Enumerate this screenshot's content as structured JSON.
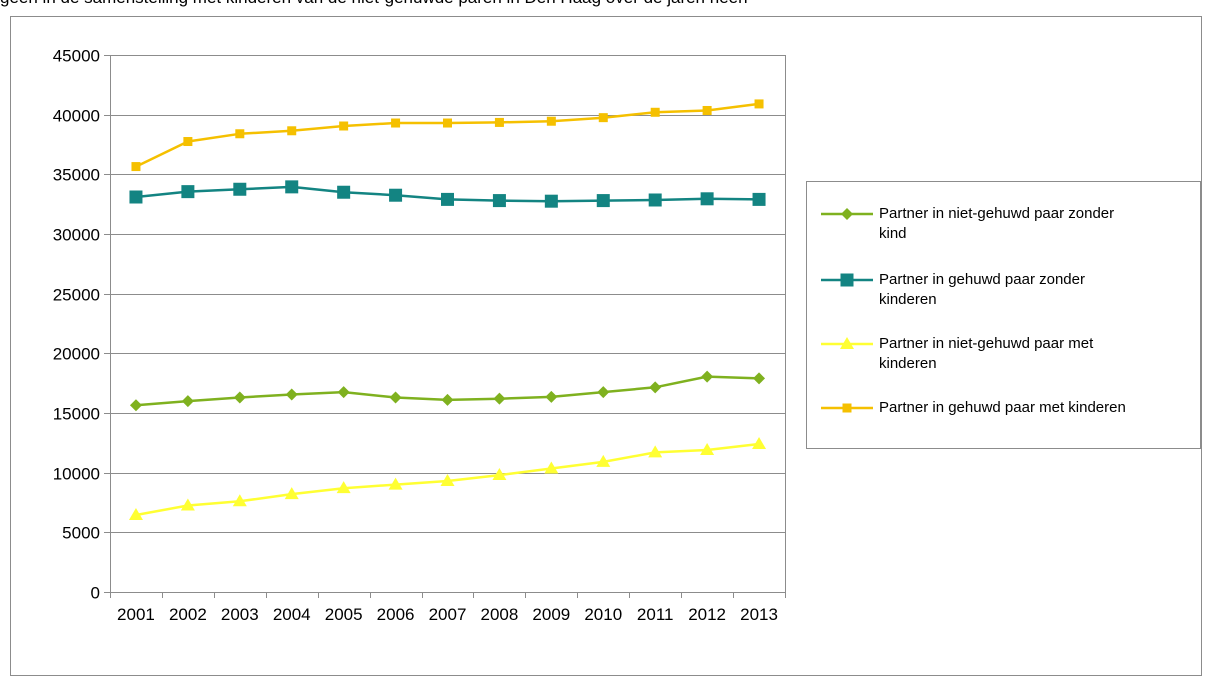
{
  "top_text": "geen in de samenstelling met kinderen van de niet-gehuwde paren in Den Haag over de jaren heen",
  "chart_data": {
    "type": "line",
    "categories": [
      "2001",
      "2002",
      "2003",
      "2004",
      "2005",
      "2006",
      "2007",
      "2008",
      "2009",
      "2010",
      "2011",
      "2012",
      "2013"
    ],
    "ylim": [
      0,
      45000
    ],
    "yticks": [
      0,
      5000,
      10000,
      15000,
      20000,
      25000,
      30000,
      35000,
      40000,
      45000
    ],
    "grid": true,
    "legend_position": "right",
    "series": [
      {
        "name": "Partner in niet-gehuwd paar zonder kind",
        "color": "#7fb11f",
        "marker": "diamond",
        "values": [
          15650,
          16000,
          16300,
          16550,
          16750,
          16300,
          16100,
          16200,
          16350,
          16750,
          17150,
          18050,
          17900
        ]
      },
      {
        "name": "Partner in gehuwd paar zonder kinderen",
        "color": "#138482",
        "marker": "square",
        "values": [
          33100,
          33550,
          33750,
          33950,
          33500,
          33250,
          32900,
          32800,
          32750,
          32800,
          32850,
          32950,
          32900
        ]
      },
      {
        "name": "Partner in niet-gehuwd paar met kinderen",
        "color": "#ffff33",
        "marker": "triangle",
        "values": [
          6450,
          7250,
          7600,
          8200,
          8700,
          9000,
          9300,
          9800,
          10350,
          10900,
          11700,
          11900,
          12400
        ]
      },
      {
        "name": "Partner in gehuwd paar met kinderen",
        "color": "#f5c000",
        "marker": "square-small",
        "values": [
          35650,
          37750,
          38400,
          38650,
          39050,
          39300,
          39300,
          39350,
          39450,
          39750,
          40200,
          40350,
          40900
        ]
      }
    ]
  },
  "legend_labels": [
    [
      "Partner in niet-gehuwd paar zonder",
      "kind"
    ],
    [
      "Partner in gehuwd paar zonder",
      "kinderen"
    ],
    [
      "Partner in niet-gehuwd paar met",
      "kinderen"
    ],
    [
      "Partner in gehuwd paar met kinderen"
    ]
  ]
}
